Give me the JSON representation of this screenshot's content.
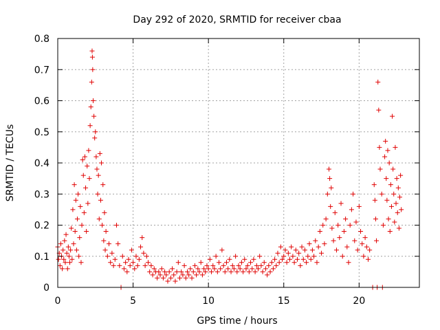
{
  "chart_data": {
    "type": "scatter",
    "title": "Day 292 of 2020, SRMTID for receiver cbaa",
    "xlabel": "GPS time / hours",
    "ylabel": "SRMTID / TECUs",
    "xlim": [
      0,
      24
    ],
    "ylim": [
      0,
      0.8
    ],
    "grid": true,
    "x_ticks": [
      0,
      5,
      10,
      15,
      20
    ],
    "y_ticks": [
      0,
      0.1,
      0.2,
      0.3,
      0.4,
      0.5,
      0.6,
      0.7,
      0.8
    ],
    "x_tick_labels": [
      "0",
      "5",
      "10",
      "15",
      "20"
    ],
    "y_tick_labels": [
      "0",
      "0.1",
      "0.2",
      "0.3",
      "0.4",
      "0.5",
      "0.6",
      "0.7",
      "0.8"
    ],
    "marker": "+",
    "color": "#e00000",
    "series": [
      {
        "name": "SRMTID",
        "points": [
          [
            0.0,
            0.13
          ],
          [
            0.05,
            0.09
          ],
          [
            0.1,
            0.11
          ],
          [
            0.15,
            0.07
          ],
          [
            0.2,
            0.14
          ],
          [
            0.25,
            0.1
          ],
          [
            0.3,
            0.06
          ],
          [
            0.35,
            0.12
          ],
          [
            0.4,
            0.09
          ],
          [
            0.45,
            0.15
          ],
          [
            0.5,
            0.08
          ],
          [
            0.55,
            0.17
          ],
          [
            0.6,
            0.11
          ],
          [
            0.65,
            0.06
          ],
          [
            0.7,
            0.13
          ],
          [
            0.75,
            0.1
          ],
          [
            0.8,
            0.08
          ],
          [
            0.85,
            0.12
          ],
          [
            0.9,
            0.19
          ],
          [
            0.95,
            0.09
          ],
          [
            1.0,
            0.25
          ],
          [
            1.05,
            0.14
          ],
          [
            1.1,
            0.33
          ],
          [
            1.15,
            0.18
          ],
          [
            1.2,
            0.28
          ],
          [
            1.25,
            0.12
          ],
          [
            1.3,
            0.22
          ],
          [
            1.35,
            0.3
          ],
          [
            1.4,
            0.1
          ],
          [
            1.45,
            0.16
          ],
          [
            1.5,
            0.26
          ],
          [
            1.55,
            0.08
          ],
          [
            1.6,
            0.2
          ],
          [
            1.65,
            0.41
          ],
          [
            1.7,
            0.36
          ],
          [
            1.75,
            0.24
          ],
          [
            1.8,
            0.42
          ],
          [
            1.85,
            0.32
          ],
          [
            1.9,
            0.18
          ],
          [
            1.95,
            0.39
          ],
          [
            2.0,
            0.27
          ],
          [
            2.05,
            0.44
          ],
          [
            2.1,
            0.35
          ],
          [
            2.15,
            0.52
          ],
          [
            2.2,
            0.58
          ],
          [
            2.25,
            0.66
          ],
          [
            2.28,
            0.76
          ],
          [
            2.3,
            0.74
          ],
          [
            2.32,
            0.7
          ],
          [
            2.35,
            0.6
          ],
          [
            2.4,
            0.55
          ],
          [
            2.45,
            0.48
          ],
          [
            2.5,
            0.5
          ],
          [
            2.55,
            0.42
          ],
          [
            2.6,
            0.38
          ],
          [
            2.65,
            0.3
          ],
          [
            2.7,
            0.36
          ],
          [
            2.75,
            0.22
          ],
          [
            2.8,
            0.43
          ],
          [
            2.85,
            0.28
          ],
          [
            2.9,
            0.4
          ],
          [
            2.95,
            0.2
          ],
          [
            3.0,
            0.33
          ],
          [
            3.05,
            0.15
          ],
          [
            3.1,
            0.24
          ],
          [
            3.15,
            0.12
          ],
          [
            3.2,
            0.18
          ],
          [
            3.3,
            0.1
          ],
          [
            3.4,
            0.14
          ],
          [
            3.5,
            0.08
          ],
          [
            3.6,
            0.11
          ],
          [
            3.7,
            0.07
          ],
          [
            3.8,
            0.09
          ],
          [
            3.9,
            0.2
          ],
          [
            4.0,
            0.14
          ],
          [
            4.1,
            0.07
          ],
          [
            4.2,
            0.0
          ],
          [
            4.3,
            0.1
          ],
          [
            4.4,
            0.06
          ],
          [
            4.5,
            0.08
          ],
          [
            4.6,
            0.05
          ],
          [
            4.7,
            0.09
          ],
          [
            4.8,
            0.07
          ],
          [
            4.9,
            0.12
          ],
          [
            5.0,
            0.08
          ],
          [
            5.1,
            0.06
          ],
          [
            5.2,
            0.1
          ],
          [
            5.3,
            0.07
          ],
          [
            5.4,
            0.09
          ],
          [
            5.5,
            0.13
          ],
          [
            5.6,
            0.16
          ],
          [
            5.7,
            0.11
          ],
          [
            5.8,
            0.07
          ],
          [
            5.9,
            0.1
          ],
          [
            6.0,
            0.08
          ],
          [
            6.1,
            0.05
          ],
          [
            6.2,
            0.07
          ],
          [
            6.3,
            0.04
          ],
          [
            6.4,
            0.06
          ],
          [
            6.5,
            0.05
          ],
          [
            6.6,
            0.03
          ],
          [
            6.7,
            0.05
          ],
          [
            6.8,
            0.04
          ],
          [
            6.9,
            0.06
          ],
          [
            7.0,
            0.03
          ],
          [
            7.1,
            0.05
          ],
          [
            7.2,
            0.04
          ],
          [
            7.3,
            0.02
          ],
          [
            7.4,
            0.05
          ],
          [
            7.5,
            0.03
          ],
          [
            7.6,
            0.06
          ],
          [
            7.7,
            0.04
          ],
          [
            7.8,
            0.02
          ],
          [
            7.9,
            0.05
          ],
          [
            8.0,
            0.08
          ],
          [
            8.1,
            0.03
          ],
          [
            8.2,
            0.05
          ],
          [
            8.3,
            0.04
          ],
          [
            8.4,
            0.07
          ],
          [
            8.5,
            0.03
          ],
          [
            8.6,
            0.05
          ],
          [
            8.7,
            0.04
          ],
          [
            8.8,
            0.06
          ],
          [
            8.9,
            0.03
          ],
          [
            9.0,
            0.05
          ],
          [
            9.1,
            0.07
          ],
          [
            9.2,
            0.04
          ],
          [
            9.3,
            0.06
          ],
          [
            9.4,
            0.05
          ],
          [
            9.5,
            0.08
          ],
          [
            9.6,
            0.04
          ],
          [
            9.7,
            0.06
          ],
          [
            9.8,
            0.05
          ],
          [
            9.9,
            0.07
          ],
          [
            10.0,
            0.06
          ],
          [
            10.1,
            0.09
          ],
          [
            10.2,
            0.05
          ],
          [
            10.3,
            0.07
          ],
          [
            10.4,
            0.06
          ],
          [
            10.5,
            0.1
          ],
          [
            10.6,
            0.05
          ],
          [
            10.7,
            0.08
          ],
          [
            10.8,
            0.06
          ],
          [
            10.9,
            0.12
          ],
          [
            11.0,
            0.07
          ],
          [
            11.1,
            0.05
          ],
          [
            11.2,
            0.08
          ],
          [
            11.3,
            0.06
          ],
          [
            11.4,
            0.09
          ],
          [
            11.5,
            0.05
          ],
          [
            11.6,
            0.07
          ],
          [
            11.7,
            0.06
          ],
          [
            11.8,
            0.1
          ],
          [
            11.9,
            0.05
          ],
          [
            12.0,
            0.07
          ],
          [
            12.1,
            0.06
          ],
          [
            12.2,
            0.08
          ],
          [
            12.3,
            0.05
          ],
          [
            12.4,
            0.09
          ],
          [
            12.5,
            0.06
          ],
          [
            12.6,
            0.07
          ],
          [
            12.7,
            0.05
          ],
          [
            12.8,
            0.08
          ],
          [
            12.9,
            0.06
          ],
          [
            13.0,
            0.09
          ],
          [
            13.1,
            0.05
          ],
          [
            13.2,
            0.07
          ],
          [
            13.3,
            0.06
          ],
          [
            13.4,
            0.1
          ],
          [
            13.5,
            0.07
          ],
          [
            13.6,
            0.05
          ],
          [
            13.7,
            0.08
          ],
          [
            13.8,
            0.06
          ],
          [
            13.9,
            0.04
          ],
          [
            14.0,
            0.07
          ],
          [
            14.1,
            0.05
          ],
          [
            14.2,
            0.08
          ],
          [
            14.3,
            0.06
          ],
          [
            14.4,
            0.09
          ],
          [
            14.5,
            0.07
          ],
          [
            14.6,
            0.11
          ],
          [
            14.7,
            0.08
          ],
          [
            14.8,
            0.13
          ],
          [
            14.9,
            0.09
          ],
          [
            15.0,
            0.1
          ],
          [
            15.1,
            0.12
          ],
          [
            15.2,
            0.08
          ],
          [
            15.3,
            0.11
          ],
          [
            15.4,
            0.09
          ],
          [
            15.5,
            0.13
          ],
          [
            15.6,
            0.1
          ],
          [
            15.7,
            0.08
          ],
          [
            15.8,
            0.12
          ],
          [
            15.9,
            0.09
          ],
          [
            16.0,
            0.11
          ],
          [
            16.1,
            0.07
          ],
          [
            16.2,
            0.13
          ],
          [
            16.3,
            0.09
          ],
          [
            16.4,
            0.12
          ],
          [
            16.5,
            0.08
          ],
          [
            16.6,
            0.1
          ],
          [
            16.7,
            0.14
          ],
          [
            16.8,
            0.09
          ],
          [
            16.9,
            0.12
          ],
          [
            17.0,
            0.1
          ],
          [
            17.1,
            0.15
          ],
          [
            17.2,
            0.08
          ],
          [
            17.3,
            0.13
          ],
          [
            17.4,
            0.18
          ],
          [
            17.5,
            0.11
          ],
          [
            17.6,
            0.2
          ],
          [
            17.7,
            0.14
          ],
          [
            17.8,
            0.22
          ],
          [
            17.9,
            0.3
          ],
          [
            18.0,
            0.38
          ],
          [
            18.05,
            0.35
          ],
          [
            18.1,
            0.26
          ],
          [
            18.15,
            0.32
          ],
          [
            18.2,
            0.19
          ],
          [
            18.3,
            0.15
          ],
          [
            18.4,
            0.24
          ],
          [
            18.5,
            0.12
          ],
          [
            18.6,
            0.2
          ],
          [
            18.7,
            0.16
          ],
          [
            18.8,
            0.27
          ],
          [
            18.9,
            0.1
          ],
          [
            19.0,
            0.18
          ],
          [
            19.1,
            0.22
          ],
          [
            19.2,
            0.13
          ],
          [
            19.3,
            0.08
          ],
          [
            19.4,
            0.2
          ],
          [
            19.5,
            0.25
          ],
          [
            19.6,
            0.3
          ],
          [
            19.7,
            0.15
          ],
          [
            19.8,
            0.21
          ],
          [
            19.9,
            0.12
          ],
          [
            20.0,
            0.26
          ],
          [
            20.1,
            0.18
          ],
          [
            20.2,
            0.14
          ],
          [
            20.3,
            0.1
          ],
          [
            20.4,
            0.16
          ],
          [
            20.5,
            0.13
          ],
          [
            20.6,
            0.09
          ],
          [
            20.7,
            0.12
          ],
          [
            20.9,
            0.0
          ],
          [
            21.0,
            0.33
          ],
          [
            21.05,
            0.28
          ],
          [
            21.1,
            0.22
          ],
          [
            21.15,
            0.15
          ],
          [
            21.2,
            0.0
          ],
          [
            21.25,
            0.66
          ],
          [
            21.3,
            0.57
          ],
          [
            21.35,
            0.45
          ],
          [
            21.4,
            0.38
          ],
          [
            21.5,
            0.3
          ],
          [
            21.55,
            0.0
          ],
          [
            21.6,
            0.2
          ],
          [
            21.7,
            0.42
          ],
          [
            21.75,
            0.47
          ],
          [
            21.8,
            0.35
          ],
          [
            21.85,
            0.28
          ],
          [
            21.9,
            0.44
          ],
          [
            21.95,
            0.22
          ],
          [
            22.0,
            0.4
          ],
          [
            22.05,
            0.18
          ],
          [
            22.1,
            0.33
          ],
          [
            22.15,
            0.26
          ],
          [
            22.2,
            0.55
          ],
          [
            22.25,
            0.38
          ],
          [
            22.3,
            0.3
          ],
          [
            22.35,
            0.21
          ],
          [
            22.4,
            0.45
          ],
          [
            22.45,
            0.27
          ],
          [
            22.5,
            0.35
          ],
          [
            22.55,
            0.24
          ],
          [
            22.6,
            0.32
          ],
          [
            22.65,
            0.19
          ],
          [
            22.7,
            0.29
          ],
          [
            22.75,
            0.36
          ],
          [
            22.8,
            0.25
          ]
        ]
      }
    ]
  }
}
